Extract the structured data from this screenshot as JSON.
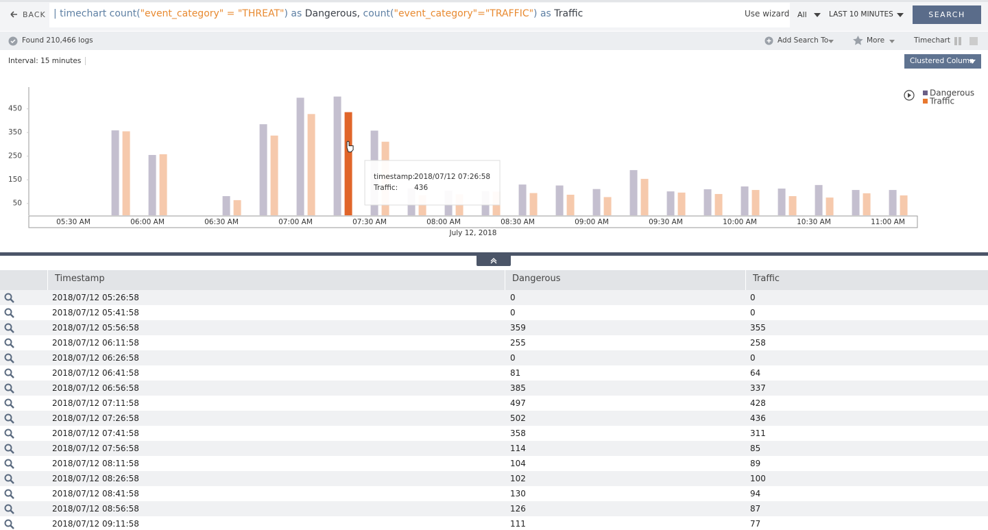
{
  "toolbar": {
    "back": "BACK",
    "query": [
      {
        "text": "| timechart count(",
        "color": "#5d7fa3"
      },
      {
        "text": "\"event_category\" = \"THREAT\"",
        "color": "#e8892f"
      },
      {
        "text": ") as ",
        "color": "#5d7fa3"
      },
      {
        "text": "Dangerous, ",
        "color": "#3a3f47"
      },
      {
        "text": "count(",
        "color": "#5d7fa3"
      },
      {
        "text": "\"event_category\"=\"TRAFFIC\"",
        "color": "#e8892f"
      },
      {
        "text": ") as ",
        "color": "#5d7fa3"
      },
      {
        "text": "Traffic",
        "color": "#3a3f47"
      }
    ],
    "use_wizard": "Use wizard",
    "scope": "All",
    "range": "LAST 10 MINUTES",
    "search": "SEARCH"
  },
  "status_bar": {
    "found": "Found 210,466 logs",
    "add_search": "Add Search To",
    "more": "More",
    "view": "Timechart"
  },
  "chart_header": {
    "interval": "Interval: 15 minutes",
    "chart_type": "Clustered Column"
  },
  "chart_data": {
    "type": "bar",
    "x": [
      "2018/07/12 05:26:58",
      "2018/07/12 05:41:58",
      "2018/07/12 05:56:58",
      "2018/07/12 06:11:58",
      "2018/07/12 06:26:58",
      "2018/07/12 06:41:58",
      "2018/07/12 06:56:58",
      "2018/07/12 07:11:58",
      "2018/07/12 07:26:58",
      "2018/07/12 07:41:58",
      "2018/07/12 07:56:58",
      "2018/07/12 08:11:58",
      "2018/07/12 08:26:58",
      "2018/07/12 08:41:58",
      "2018/07/12 08:56:58",
      "2018/07/12 09:11:58",
      "2018/07/12 09:26:58",
      "2018/07/12 09:41:58",
      "2018/07/12 09:56:58",
      "2018/07/12 10:11:58",
      "2018/07/12 10:26:58",
      "2018/07/12 10:41:58",
      "2018/07/12 10:56:58",
      "2018/07/12 11:11:58"
    ],
    "xlabel": "July 12, 2018",
    "xticks": [
      "05:30 AM",
      "06:00 AM",
      "06:30 AM",
      "07:00 AM",
      "07:30 AM",
      "08:00 AM",
      "08:30 AM",
      "09:00 AM",
      "09:30 AM",
      "10:00 AM",
      "10:30 AM",
      "11:00 AM"
    ],
    "ylim": [
      0,
      542
    ],
    "yticks": [
      50,
      150,
      250,
      350,
      450
    ],
    "series": [
      {
        "name": "Dangerous",
        "color": "#6b5f86",
        "values": [
          0,
          0,
          359,
          255,
          0,
          81,
          385,
          497,
          502,
          358,
          114,
          104,
          102,
          130,
          126,
          111,
          191,
          101,
          110,
          122,
          113,
          128,
          107,
          107
        ]
      },
      {
        "name": "Traffic",
        "color": "#e8782f",
        "values": [
          0,
          0,
          355,
          258,
          0,
          64,
          337,
          428,
          436,
          311,
          85,
          89,
          100,
          94,
          87,
          77,
          154,
          96,
          90,
          107,
          81,
          75,
          93,
          84
        ]
      }
    ],
    "legend": "top-right",
    "highlight": {
      "series": 1,
      "index": 8,
      "color": "#e0652a",
      "labels": [
        "timestamp:",
        "Traffic:"
      ]
    }
  },
  "table": {
    "columns": [
      "Timestamp"
    ]
  }
}
